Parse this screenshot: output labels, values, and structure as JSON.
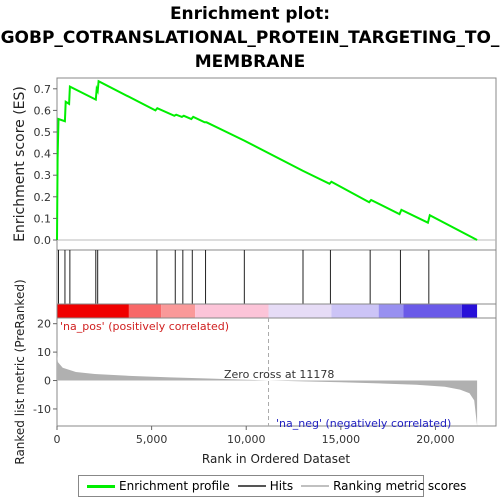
{
  "title": {
    "line1": "Enrichment plot:",
    "line2": "GOBP_COTRANSLATIONAL_PROTEIN_TARGETING_TO_",
    "line3": "MEMBRANE"
  },
  "chart_data": {
    "type": "line",
    "x_range": [
      0,
      23200
    ],
    "x_ticks": [
      0,
      5000,
      10000,
      15000,
      20000
    ],
    "x_tick_labels": [
      "0",
      "5,000",
      "10,000",
      "15,000",
      "20,000"
    ],
    "xlabel": "Rank in Ordered Dataset",
    "es_panel": {
      "ylabel": "Enrichment score (ES)",
      "ylim": [
        0,
        0.75
      ],
      "y_ticks": [
        0.0,
        0.1,
        0.2,
        0.3,
        0.4,
        0.5,
        0.6,
        0.7
      ],
      "y_tick_labels": [
        "0.0",
        "0.1",
        "0.2",
        "0.3",
        "0.4",
        "0.5",
        "0.6",
        "0.7"
      ],
      "series_color": "#00ee00",
      "points": [
        [
          0,
          0.0
        ],
        [
          30,
          0.38
        ],
        [
          80,
          0.56
        ],
        [
          420,
          0.55
        ],
        [
          460,
          0.64
        ],
        [
          640,
          0.63
        ],
        [
          680,
          0.71
        ],
        [
          2050,
          0.65
        ],
        [
          2100,
          0.7
        ],
        [
          2150,
          0.69
        ],
        [
          2200,
          0.735
        ],
        [
          5200,
          0.6
        ],
        [
          5300,
          0.61
        ],
        [
          6200,
          0.575
        ],
        [
          6300,
          0.58
        ],
        [
          6600,
          0.57
        ],
        [
          6700,
          0.575
        ],
        [
          7100,
          0.56
        ],
        [
          7200,
          0.57
        ],
        [
          7800,
          0.545
        ],
        [
          7900,
          0.545
        ],
        [
          9900,
          0.46
        ],
        [
          13000,
          0.32
        ],
        [
          14400,
          0.26
        ],
        [
          14500,
          0.27
        ],
        [
          16500,
          0.175
        ],
        [
          16600,
          0.185
        ],
        [
          18100,
          0.12
        ],
        [
          18200,
          0.14
        ],
        [
          19600,
          0.08
        ],
        [
          19700,
          0.115
        ],
        [
          22200,
          0.0
        ]
      ]
    },
    "hits": [
      80,
      420,
      680,
      2050,
      2150,
      5280,
      6250,
      6650,
      7150,
      7850,
      9900,
      13000,
      14450,
      16550,
      18150,
      19650
    ],
    "ranking_panel": {
      "ylabel": "Ranked list metric (PreRanked)",
      "ylim": [
        -16,
        22
      ],
      "y_ticks": [
        -10,
        0,
        10,
        20
      ],
      "y_tick_labels": [
        "-10",
        "0",
        "10",
        "20"
      ],
      "fill_color": "#b0b0b0",
      "points": [
        [
          0,
          9
        ],
        [
          50,
          6.5
        ],
        [
          300,
          4.5
        ],
        [
          1000,
          3
        ],
        [
          2000,
          2.3
        ],
        [
          4000,
          1.6
        ],
        [
          6000,
          1.1
        ],
        [
          8000,
          0.7
        ],
        [
          10000,
          0.3
        ],
        [
          11178,
          0
        ],
        [
          13000,
          -0.3
        ],
        [
          15000,
          -0.6
        ],
        [
          17000,
          -1.0
        ],
        [
          19000,
          -1.5
        ],
        [
          20500,
          -2.2
        ],
        [
          21300,
          -3.2
        ],
        [
          21800,
          -4.5
        ],
        [
          22050,
          -7
        ],
        [
          22200,
          -16
        ]
      ],
      "zero_cross": 11178,
      "zero_cross_label": "Zero cross at 11178",
      "pos_label": "'na_pos' (positively correlated)",
      "neg_label": "'na_neg' (negatively correlated)"
    },
    "color_band": {
      "segments": [
        {
          "from": 0,
          "to": 3800,
          "color": "#f00000"
        },
        {
          "from": 3800,
          "to": 5500,
          "color": "#f86868"
        },
        {
          "from": 5500,
          "to": 7300,
          "color": "#fa9999"
        },
        {
          "from": 7300,
          "to": 11178,
          "color": "#fcc4d8"
        },
        {
          "from": 11178,
          "to": 14500,
          "color": "#e6dcf6"
        },
        {
          "from": 14500,
          "to": 17000,
          "color": "#ccc4f6"
        },
        {
          "from": 17000,
          "to": 18300,
          "color": "#9890f0"
        },
        {
          "from": 18300,
          "to": 21400,
          "color": "#6a5ae8"
        },
        {
          "from": 21400,
          "to": 22200,
          "color": "#2810d8"
        }
      ]
    },
    "legend": {
      "placement": "bottom",
      "entries": [
        {
          "label": "Enrichment profile",
          "color": "#00ee00"
        },
        {
          "label": "Hits",
          "color": "#555555"
        },
        {
          "label": "Ranking metric scores",
          "color": "#c0c0c0"
        }
      ]
    }
  }
}
